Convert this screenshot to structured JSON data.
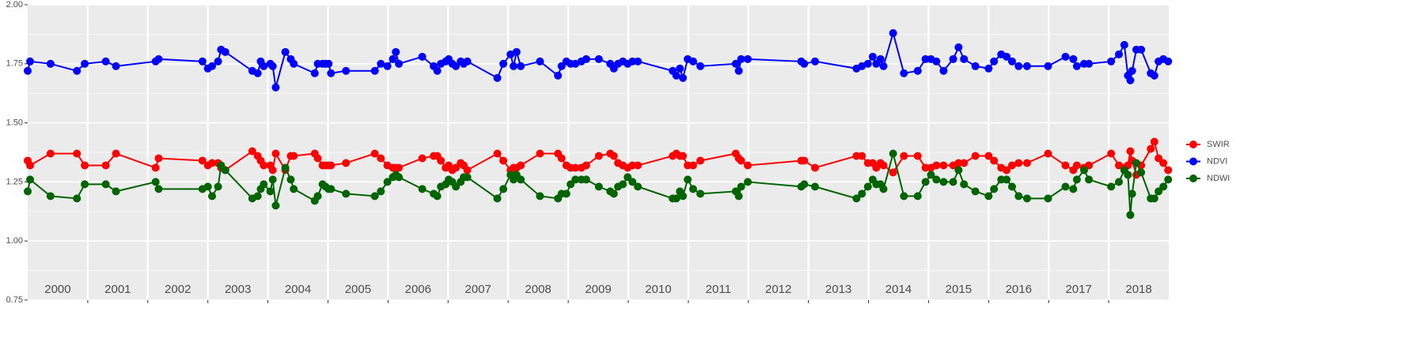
{
  "chart_data": {
    "type": "line",
    "x": [
      2000.0,
      2000.04,
      2000.38,
      2000.82,
      2000.95,
      2001.3,
      2001.47,
      2002.13,
      2002.18,
      2002.91,
      2003.0,
      2003.07,
      2003.17,
      2003.22,
      2003.29,
      2003.74,
      2003.83,
      2003.88,
      2003.93,
      2004.04,
      2004.08,
      2004.13,
      2004.29,
      2004.38,
      2004.43,
      2004.78,
      2004.83,
      2004.91,
      2004.96,
      2005.01,
      2005.05,
      2005.3,
      2005.78,
      2005.88,
      2005.99,
      2006.08,
      2006.13,
      2006.18,
      2006.57,
      2006.76,
      2006.82,
      2006.88,
      2006.96,
      2007.01,
      2007.07,
      2007.13,
      2007.21,
      2007.26,
      2007.32,
      2007.82,
      2007.92,
      2008.04,
      2008.09,
      2008.14,
      2008.21,
      2008.53,
      2008.83,
      2008.89,
      2008.97,
      2009.04,
      2009.12,
      2009.22,
      2009.3,
      2009.51,
      2009.7,
      2009.76,
      2009.83,
      2009.91,
      2009.99,
      2010.07,
      2010.16,
      2010.74,
      2010.8,
      2010.86,
      2010.91,
      2010.99,
      2011.08,
      2011.2,
      2011.79,
      2011.84,
      2011.88,
      2011.99,
      2012.88,
      2012.93,
      2013.11,
      2013.8,
      2013.89,
      2013.99,
      2014.07,
      2014.13,
      2014.2,
      2014.25,
      2014.41,
      2014.59,
      2014.82,
      2014.95,
      2015.04,
      2015.13,
      2015.25,
      2015.41,
      2015.5,
      2015.59,
      2015.78,
      2016.0,
      2016.09,
      2016.21,
      2016.3,
      2016.39,
      2016.5,
      2016.64,
      2016.99,
      2017.28,
      2017.41,
      2017.47,
      2017.59,
      2017.67,
      2018.04,
      2018.17,
      2018.26,
      2018.32,
      2018.36,
      2018.39,
      2018.46,
      2018.54,
      2018.7,
      2018.76,
      2018.83,
      2018.91,
      2018.99
    ],
    "series": [
      {
        "name": "SWIR",
        "color": "#ff0000",
        "values": [
          1.34,
          1.32,
          1.37,
          1.37,
          1.32,
          1.32,
          1.37,
          1.31,
          1.35,
          1.34,
          1.32,
          1.33,
          1.33,
          1.31,
          1.3,
          1.38,
          1.36,
          1.34,
          1.32,
          1.32,
          1.3,
          1.37,
          1.3,
          1.36,
          1.36,
          1.37,
          1.35,
          1.32,
          1.32,
          1.32,
          1.32,
          1.33,
          1.37,
          1.35,
          1.32,
          1.31,
          1.31,
          1.31,
          1.35,
          1.36,
          1.36,
          1.34,
          1.31,
          1.32,
          1.3,
          1.31,
          1.33,
          1.32,
          1.3,
          1.37,
          1.34,
          1.3,
          1.31,
          1.31,
          1.32,
          1.37,
          1.37,
          1.35,
          1.32,
          1.31,
          1.31,
          1.31,
          1.32,
          1.36,
          1.37,
          1.36,
          1.33,
          1.32,
          1.31,
          1.32,
          1.32,
          1.36,
          1.37,
          1.36,
          1.36,
          1.32,
          1.32,
          1.34,
          1.37,
          1.35,
          1.34,
          1.32,
          1.34,
          1.34,
          1.31,
          1.36,
          1.36,
          1.33,
          1.33,
          1.31,
          1.33,
          1.32,
          1.29,
          1.36,
          1.36,
          1.31,
          1.31,
          1.32,
          1.32,
          1.32,
          1.33,
          1.33,
          1.36,
          1.36,
          1.34,
          1.31,
          1.3,
          1.32,
          1.33,
          1.33,
          1.37,
          1.32,
          1.3,
          1.32,
          1.31,
          1.32,
          1.37,
          1.32,
          1.31,
          1.32,
          1.38,
          1.34,
          1.28,
          1.32,
          1.39,
          1.42,
          1.35,
          1.33,
          1.3
        ]
      },
      {
        "name": "NDVI",
        "color": "#0000ff",
        "values": [
          1.72,
          1.76,
          1.75,
          1.72,
          1.75,
          1.76,
          1.74,
          1.76,
          1.77,
          1.76,
          1.73,
          1.74,
          1.76,
          1.81,
          1.8,
          1.72,
          1.71,
          1.76,
          1.74,
          1.75,
          1.74,
          1.65,
          1.8,
          1.77,
          1.75,
          1.71,
          1.75,
          1.75,
          1.75,
          1.75,
          1.71,
          1.72,
          1.72,
          1.75,
          1.74,
          1.77,
          1.8,
          1.75,
          1.78,
          1.74,
          1.72,
          1.75,
          1.76,
          1.77,
          1.75,
          1.74,
          1.76,
          1.75,
          1.76,
          1.69,
          1.75,
          1.79,
          1.74,
          1.8,
          1.74,
          1.76,
          1.7,
          1.74,
          1.76,
          1.75,
          1.75,
          1.76,
          1.77,
          1.77,
          1.75,
          1.73,
          1.75,
          1.76,
          1.75,
          1.76,
          1.76,
          1.72,
          1.7,
          1.73,
          1.69,
          1.77,
          1.76,
          1.74,
          1.75,
          1.72,
          1.77,
          1.77,
          1.76,
          1.75,
          1.76,
          1.73,
          1.74,
          1.75,
          1.78,
          1.75,
          1.77,
          1.74,
          1.88,
          1.71,
          1.72,
          1.77,
          1.77,
          1.76,
          1.72,
          1.77,
          1.82,
          1.77,
          1.74,
          1.73,
          1.76,
          1.79,
          1.78,
          1.76,
          1.74,
          1.74,
          1.74,
          1.78,
          1.77,
          1.74,
          1.75,
          1.75,
          1.76,
          1.79,
          1.83,
          1.7,
          1.68,
          1.72,
          1.81,
          1.81,
          1.71,
          1.7,
          1.76,
          1.77,
          1.76
        ]
      },
      {
        "name": "NDWI",
        "color": "#006400",
        "values": [
          1.21,
          1.26,
          1.19,
          1.18,
          1.24,
          1.24,
          1.21,
          1.25,
          1.22,
          1.22,
          1.23,
          1.19,
          1.23,
          1.32,
          1.3,
          1.18,
          1.19,
          1.22,
          1.24,
          1.21,
          1.26,
          1.15,
          1.31,
          1.26,
          1.22,
          1.17,
          1.19,
          1.24,
          1.23,
          1.22,
          1.22,
          1.2,
          1.19,
          1.21,
          1.25,
          1.27,
          1.28,
          1.27,
          1.22,
          1.2,
          1.19,
          1.23,
          1.24,
          1.26,
          1.25,
          1.23,
          1.25,
          1.27,
          1.27,
          1.18,
          1.22,
          1.28,
          1.26,
          1.28,
          1.26,
          1.19,
          1.18,
          1.2,
          1.2,
          1.24,
          1.26,
          1.26,
          1.26,
          1.23,
          1.21,
          1.2,
          1.23,
          1.24,
          1.27,
          1.25,
          1.23,
          1.18,
          1.18,
          1.21,
          1.19,
          1.26,
          1.22,
          1.2,
          1.21,
          1.19,
          1.23,
          1.25,
          1.23,
          1.24,
          1.23,
          1.18,
          1.2,
          1.23,
          1.26,
          1.24,
          1.24,
          1.22,
          1.37,
          1.19,
          1.19,
          1.25,
          1.28,
          1.26,
          1.25,
          1.25,
          1.3,
          1.24,
          1.21,
          1.19,
          1.22,
          1.26,
          1.26,
          1.23,
          1.19,
          1.18,
          1.18,
          1.23,
          1.22,
          1.26,
          1.3,
          1.26,
          1.23,
          1.25,
          1.3,
          1.28,
          1.11,
          1.2,
          1.33,
          1.29,
          1.18,
          1.18,
          1.21,
          1.23,
          1.26
        ]
      }
    ],
    "xlim": [
      2000,
      2019
    ],
    "xticks": [
      2001,
      2002,
      2003,
      2004,
      2005,
      2006,
      2007,
      2008,
      2009,
      2010,
      2011,
      2012,
      2013,
      2014,
      2015,
      2016,
      2017,
      2018
    ],
    "year_labels": [
      "2000",
      "2001",
      "2002",
      "2003",
      "2004",
      "2005",
      "2006",
      "2007",
      "2008",
      "2009",
      "2010",
      "2011",
      "2012",
      "2013",
      "2014",
      "2015",
      "2016",
      "2017",
      "2018"
    ],
    "ylim": [
      0.75,
      2.0
    ],
    "yticks": [
      {
        "value": 0.75,
        "label": "0.75"
      },
      {
        "value": 1.0,
        "label": "1.00"
      },
      {
        "value": 1.25,
        "label": "1.25"
      },
      {
        "value": 1.5,
        "label": "1.50"
      },
      {
        "value": 1.75,
        "label": "1.75"
      },
      {
        "value": 2.0,
        "label": "2.00"
      }
    ],
    "grid": true,
    "legend": "right"
  }
}
